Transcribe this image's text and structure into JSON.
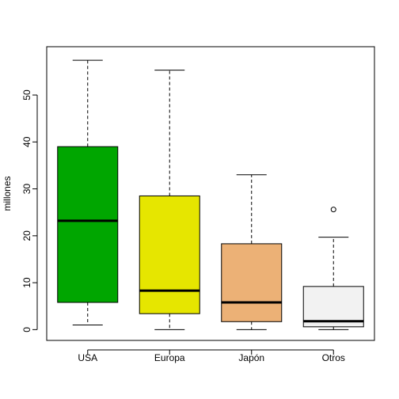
{
  "chart_data": {
    "type": "boxplot",
    "title": "",
    "xlabel": "",
    "ylabel": "millones",
    "ylim": [
      -2.3,
      60.3
    ],
    "yticks": [
      0,
      10,
      20,
      30,
      40,
      50
    ],
    "grid": false,
    "legend": "none",
    "categories": [
      "USA",
      "Europa",
      "Japón",
      "Otros"
    ],
    "boxes": [
      {
        "category": "USA",
        "whisker_low": 1.0,
        "q1": 5.8,
        "median": 23.2,
        "q3": 39.0,
        "whisker_high": 57.4,
        "outliers": [],
        "color": "#00A600"
      },
      {
        "category": "Europa",
        "whisker_low": 0.0,
        "q1": 3.4,
        "median": 8.3,
        "q3": 28.5,
        "whisker_high": 55.3,
        "outliers": [],
        "color": "#E6E600"
      },
      {
        "category": "Japón",
        "whisker_low": 0.0,
        "q1": 1.7,
        "median": 5.8,
        "q3": 18.3,
        "whisker_high": 33.0,
        "outliers": [],
        "color": "#ECB176"
      },
      {
        "category": "Otros",
        "whisker_low": 0.0,
        "q1": 0.6,
        "median": 1.8,
        "q3": 9.2,
        "whisker_high": 19.7,
        "outliers": [
          25.6
        ],
        "color": "#F2F2F2"
      }
    ]
  }
}
